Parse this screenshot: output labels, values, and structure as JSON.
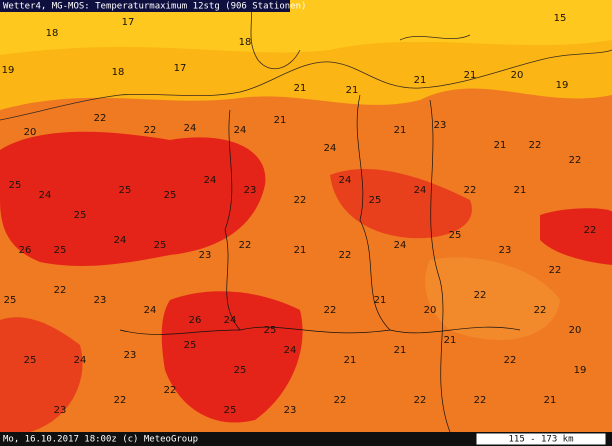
{
  "header": {
    "title": "Wetter4, MG-MOS: Temperaturmaximum 12stg (906 Stationen)"
  },
  "footer": {
    "timestamp": "Mo, 16.10.2017 18:00z (c) MeteoGroup",
    "scale": "115 - 173 km"
  },
  "stations": [
    17,
    18,
    19,
    18,
    17,
    18,
    21,
    21,
    21,
    21,
    20,
    19,
    15,
    20,
    22,
    22,
    24,
    24,
    21,
    24,
    21,
    23,
    21,
    22,
    22,
    25,
    24,
    25,
    25,
    25,
    24,
    23,
    22,
    24,
    25,
    24,
    22,
    21,
    22,
    26,
    25,
    24,
    25,
    23,
    22,
    21,
    22,
    24,
    25,
    23,
    22,
    25,
    22,
    23,
    24,
    26,
    24,
    25,
    22,
    21,
    20,
    22,
    22,
    20,
    25,
    24,
    23,
    25,
    25,
    24,
    21,
    21,
    21,
    22,
    19,
    23,
    22,
    22,
    25,
    23,
    22,
    22,
    22,
    21
  ]
}
